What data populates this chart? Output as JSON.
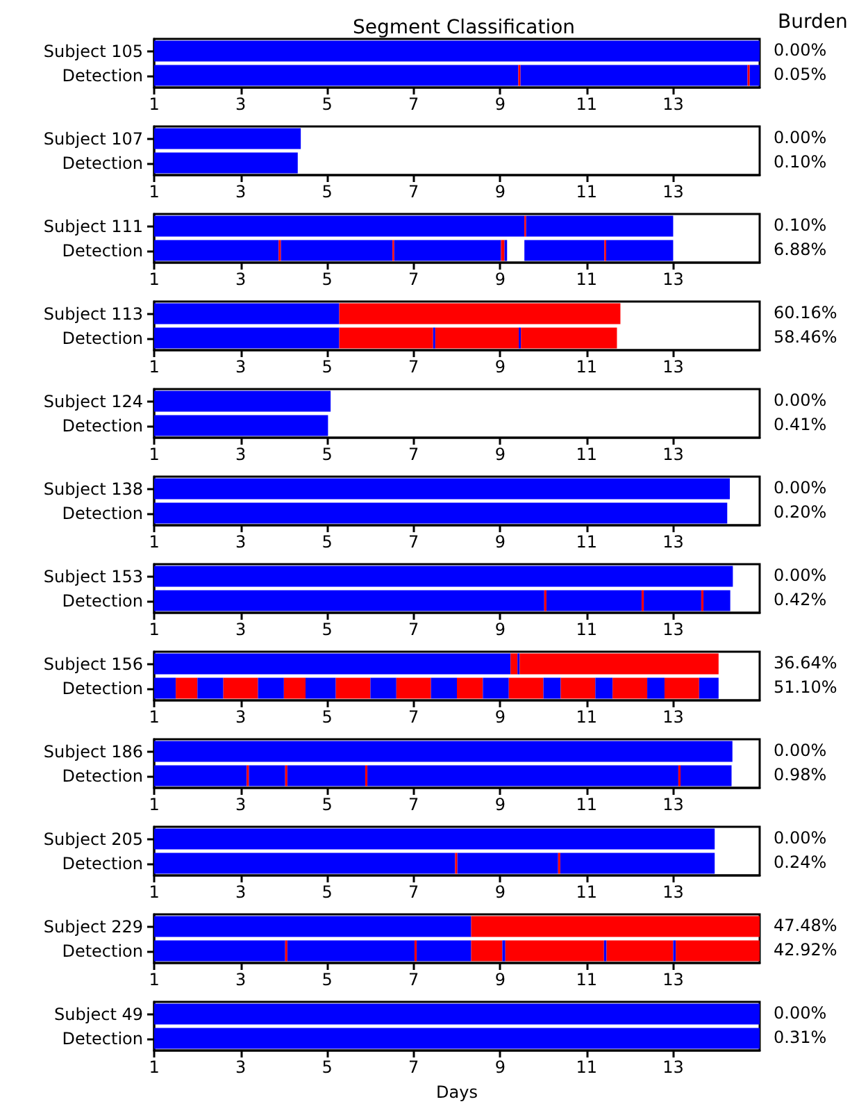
{
  "chart_data": [
    {
      "type": "bar",
      "orientation": "horizontal",
      "title": "Segment Classification",
      "y2label": "Burden",
      "categories": [
        "Subject 105",
        "Detection"
      ],
      "xlim": [
        1,
        15
      ],
      "xticks": [
        1,
        3,
        5,
        7,
        9,
        11,
        13
      ],
      "annotations": [
        "0.00%",
        "0.05%"
      ],
      "series": [
        {
          "color": "#0000ff",
          "values": [
            14,
            8.42
          ],
          "base": [
            1,
            1
          ]
        },
        {
          "color": "#ff0000",
          "values": [
            null,
            0.05
          ],
          "base": [
            null,
            9.42
          ]
        },
        {
          "color": "#0000ff",
          "values": [
            null,
            5.25
          ],
          "base": [
            null,
            9.47
          ]
        },
        {
          "color": "#ff0000",
          "values": [
            null,
            0.05
          ],
          "base": [
            null,
            14.72
          ]
        },
        {
          "color": "#0000ff",
          "values": [
            null,
            0.23
          ],
          "base": [
            null,
            14.77
          ]
        }
      ]
    },
    {
      "type": "bar",
      "orientation": "horizontal",
      "categories": [
        "Subject 107",
        "Detection"
      ],
      "xlim": [
        1,
        15
      ],
      "xticks": [
        1,
        3,
        5,
        7,
        9,
        11,
        13
      ],
      "annotations": [
        "0.00%",
        "0.10%"
      ],
      "series": [
        {
          "color": "#0000ff",
          "values": [
            3.39,
            3.32
          ],
          "base": [
            1,
            1
          ]
        }
      ]
    },
    {
      "type": "bar",
      "orientation": "horizontal",
      "categories": [
        "Subject 111",
        "Detection"
      ],
      "xlim": [
        1,
        15
      ],
      "xticks": [
        1,
        3,
        5,
        7,
        9,
        11,
        13
      ],
      "annotations": [
        "0.10%",
        "6.88%"
      ],
      "series": [
        {
          "color": "#0000ff",
          "values": [
            8.56,
            2.88
          ],
          "base": [
            1,
            1
          ]
        },
        {
          "color": "#ff0000",
          "values": [
            0.04,
            0.05
          ],
          "base": [
            9.56,
            3.88
          ]
        },
        {
          "color": "#0000ff",
          "values": [
            3.4,
            2.58
          ],
          "base": [
            9.6,
            3.93
          ]
        },
        {
          "color": "#ff0000",
          "values": [
            null,
            0.04
          ],
          "base": [
            null,
            6.51
          ]
        },
        {
          "color": "#0000ff",
          "values": [
            null,
            2.47
          ],
          "base": [
            null,
            6.55
          ]
        },
        {
          "color": "#ff0000",
          "values": [
            null,
            0.08
          ],
          "base": [
            null,
            9.02
          ]
        },
        {
          "color": "#0000ff",
          "values": [
            null,
            0.06
          ],
          "base": [
            null,
            9.1
          ]
        },
        {
          "color": "#0000ff",
          "values": [
            null,
            1.85
          ],
          "base": [
            null,
            9.56
          ]
        },
        {
          "color": "#ff0000",
          "values": [
            null,
            0.04
          ],
          "base": [
            null,
            11.41
          ]
        },
        {
          "color": "#0000ff",
          "values": [
            null,
            1.55
          ],
          "base": [
            null,
            11.45
          ]
        }
      ]
    },
    {
      "type": "bar",
      "orientation": "horizontal",
      "categories": [
        "Subject 113",
        "Detection"
      ],
      "xlim": [
        1,
        15
      ],
      "xticks": [
        1,
        3,
        5,
        7,
        9,
        11,
        13
      ],
      "annotations": [
        "60.16%",
        "58.46%"
      ],
      "series": [
        {
          "color": "#0000ff",
          "values": [
            4.28,
            4.28
          ],
          "base": [
            1,
            1
          ]
        },
        {
          "color": "#ff0000",
          "values": [
            6.5,
            2.17
          ],
          "base": [
            5.28,
            5.28
          ]
        },
        {
          "color": "#0000ff",
          "values": [
            null,
            0.05
          ],
          "base": [
            null,
            7.45
          ]
        },
        {
          "color": "#ff0000",
          "values": [
            null,
            1.93
          ],
          "base": [
            null,
            7.5
          ]
        },
        {
          "color": "#0000ff",
          "values": [
            null,
            0.05
          ],
          "base": [
            null,
            9.43
          ]
        },
        {
          "color": "#ff0000",
          "values": [
            null,
            2.22
          ],
          "base": [
            null,
            9.48
          ]
        }
      ]
    },
    {
      "type": "bar",
      "orientation": "horizontal",
      "categories": [
        "Subject 124",
        "Detection"
      ],
      "xlim": [
        1,
        15
      ],
      "xticks": [
        1,
        3,
        5,
        7,
        9,
        11,
        13
      ],
      "annotations": [
        "0.00%",
        "0.41%"
      ],
      "series": [
        {
          "color": "#0000ff",
          "values": [
            4.08,
            4.02
          ],
          "base": [
            1,
            1
          ]
        }
      ]
    },
    {
      "type": "bar",
      "orientation": "horizontal",
      "categories": [
        "Subject 138",
        "Detection"
      ],
      "xlim": [
        1,
        15
      ],
      "xticks": [
        1,
        3,
        5,
        7,
        9,
        11,
        13
      ],
      "annotations": [
        "0.00%",
        "0.20%"
      ],
      "series": [
        {
          "color": "#0000ff",
          "values": [
            13.31,
            13.25
          ],
          "base": [
            1,
            1
          ]
        }
      ]
    },
    {
      "type": "bar",
      "orientation": "horizontal",
      "categories": [
        "Subject 153",
        "Detection"
      ],
      "xlim": [
        1,
        15
      ],
      "xticks": [
        1,
        3,
        5,
        7,
        9,
        11,
        13
      ],
      "annotations": [
        "0.00%",
        "0.42%"
      ],
      "series": [
        {
          "color": "#0000ff",
          "values": [
            13.38,
            9.02
          ],
          "base": [
            1,
            1
          ]
        },
        {
          "color": "#ff0000",
          "values": [
            null,
            0.05
          ],
          "base": [
            null,
            10.02
          ]
        },
        {
          "color": "#0000ff",
          "values": [
            null,
            2.2
          ],
          "base": [
            null,
            10.07
          ]
        },
        {
          "color": "#ff0000",
          "values": [
            null,
            0.05
          ],
          "base": [
            null,
            12.27
          ]
        },
        {
          "color": "#0000ff",
          "values": [
            null,
            1.33
          ],
          "base": [
            null,
            12.32
          ]
        },
        {
          "color": "#ff0000",
          "values": [
            null,
            0.05
          ],
          "base": [
            null,
            13.65
          ]
        },
        {
          "color": "#0000ff",
          "values": [
            null,
            0.62
          ],
          "base": [
            null,
            13.7
          ]
        }
      ]
    },
    {
      "type": "bar",
      "orientation": "horizontal",
      "categories": [
        "Subject 156",
        "Detection"
      ],
      "xlim": [
        1,
        15
      ],
      "xticks": [
        1,
        3,
        5,
        7,
        9,
        11,
        13
      ],
      "annotations": [
        "36.64%",
        "51.10%"
      ],
      "series": [
        {
          "color": "#0000ff",
          "values": [
            8.24,
            0.5
          ],
          "base": [
            1,
            1
          ]
        },
        {
          "color": "#ff0000",
          "values": [
            0.16,
            0.5
          ],
          "base": [
            9.24,
            1.5
          ]
        },
        {
          "color": "#0000ff",
          "values": [
            0.05,
            0.6
          ],
          "base": [
            9.4,
            2
          ]
        },
        {
          "color": "#ff0000",
          "values": [
            4.6,
            0.8
          ],
          "base": [
            9.45,
            2.6
          ]
        },
        {
          "color": "#0000ff",
          "values": [
            null,
            0.6
          ],
          "base": [
            null,
            3.4
          ]
        },
        {
          "color": "#ff0000",
          "values": [
            null,
            0.5
          ],
          "base": [
            null,
            4
          ]
        },
        {
          "color": "#0000ff",
          "values": [
            null,
            0.7
          ],
          "base": [
            null,
            4.5
          ]
        },
        {
          "color": "#ff0000",
          "values": [
            null,
            0.8
          ],
          "base": [
            null,
            5.2
          ]
        },
        {
          "color": "#0000ff",
          "values": [
            null,
            0.6
          ],
          "base": [
            null,
            6
          ]
        },
        {
          "color": "#ff0000",
          "values": [
            null,
            0.8
          ],
          "base": [
            null,
            6.6
          ]
        },
        {
          "color": "#0000ff",
          "values": [
            null,
            0.6
          ],
          "base": [
            null,
            7.4
          ]
        },
        {
          "color": "#ff0000",
          "values": [
            null,
            0.6
          ],
          "base": [
            null,
            8
          ]
        },
        {
          "color": "#0000ff",
          "values": [
            null,
            0.6
          ],
          "base": [
            null,
            8.6
          ]
        },
        {
          "color": "#ff0000",
          "values": [
            null,
            0.8
          ],
          "base": [
            null,
            9.2
          ]
        },
        {
          "color": "#0000ff",
          "values": [
            null,
            0.4
          ],
          "base": [
            null,
            10
          ]
        },
        {
          "color": "#ff0000",
          "values": [
            null,
            0.8
          ],
          "base": [
            null,
            10.4
          ]
        },
        {
          "color": "#0000ff",
          "values": [
            null,
            0.4
          ],
          "base": [
            null,
            11.2
          ]
        },
        {
          "color": "#ff0000",
          "values": [
            null,
            0.8
          ],
          "base": [
            null,
            11.6
          ]
        },
        {
          "color": "#0000ff",
          "values": [
            null,
            0.4
          ],
          "base": [
            null,
            12.4
          ]
        },
        {
          "color": "#ff0000",
          "values": [
            null,
            0.8
          ],
          "base": [
            null,
            12.8
          ]
        },
        {
          "color": "#0000ff",
          "values": [
            null,
            0.45
          ],
          "base": [
            null,
            13.6
          ]
        }
      ]
    },
    {
      "type": "bar",
      "orientation": "horizontal",
      "categories": [
        "Subject 186",
        "Detection"
      ],
      "xlim": [
        1,
        15
      ],
      "xticks": [
        1,
        3,
        5,
        7,
        9,
        11,
        13
      ],
      "annotations": [
        "0.00%",
        "0.98%"
      ],
      "series": [
        {
          "color": "#0000ff",
          "values": [
            13.37,
            2.14
          ],
          "base": [
            1,
            1
          ]
        },
        {
          "color": "#ff0000",
          "values": [
            null,
            0.05
          ],
          "base": [
            null,
            3.14
          ]
        },
        {
          "color": "#0000ff",
          "values": [
            null,
            0.84
          ],
          "base": [
            null,
            3.19
          ]
        },
        {
          "color": "#ff0000",
          "values": [
            null,
            0.05
          ],
          "base": [
            null,
            4.03
          ]
        },
        {
          "color": "#0000ff",
          "values": [
            null,
            1.8
          ],
          "base": [
            null,
            4.08
          ]
        },
        {
          "color": "#ff0000",
          "values": [
            null,
            0.05
          ],
          "base": [
            null,
            5.88
          ]
        },
        {
          "color": "#0000ff",
          "values": [
            null,
            7.19
          ],
          "base": [
            null,
            5.93
          ]
        },
        {
          "color": "#ff0000",
          "values": [
            null,
            0.05
          ],
          "base": [
            null,
            13.12
          ]
        },
        {
          "color": "#0000ff",
          "values": [
            null,
            1.18
          ],
          "base": [
            null,
            13.17
          ]
        }
      ]
    },
    {
      "type": "bar",
      "orientation": "horizontal",
      "categories": [
        "Subject 205",
        "Detection"
      ],
      "xlim": [
        1,
        15
      ],
      "xticks": [
        1,
        3,
        5,
        7,
        9,
        11,
        13
      ],
      "annotations": [
        "0.00%",
        "0.24%"
      ],
      "series": [
        {
          "color": "#0000ff",
          "values": [
            12.96,
            6.96
          ],
          "base": [
            1,
            1
          ]
        },
        {
          "color": "#ff0000",
          "values": [
            null,
            0.05
          ],
          "base": [
            null,
            7.96
          ]
        },
        {
          "color": "#0000ff",
          "values": [
            null,
            2.33
          ],
          "base": [
            null,
            8.01
          ]
        },
        {
          "color": "#ff0000",
          "values": [
            null,
            0.05
          ],
          "base": [
            null,
            10.34
          ]
        },
        {
          "color": "#0000ff",
          "values": [
            null,
            3.57
          ],
          "base": [
            null,
            10.39
          ]
        }
      ]
    },
    {
      "type": "bar",
      "orientation": "horizontal",
      "categories": [
        "Subject 229",
        "Detection"
      ],
      "xlim": [
        1,
        15
      ],
      "xticks": [
        1,
        3,
        5,
        7,
        9,
        11,
        13
      ],
      "annotations": [
        "47.48%",
        "42.92%"
      ],
      "series": [
        {
          "color": "#0000ff",
          "values": [
            7.33,
            3.03
          ],
          "base": [
            1,
            1
          ]
        },
        {
          "color": "#ff0000",
          "values": [
            6.67,
            0.05
          ],
          "base": [
            8.33,
            4.03
          ]
        },
        {
          "color": "#0000ff",
          "values": [
            null,
            2.94
          ],
          "base": [
            null,
            4.08
          ]
        },
        {
          "color": "#ff0000",
          "values": [
            null,
            0.05
          ],
          "base": [
            null,
            7.02
          ]
        },
        {
          "color": "#0000ff",
          "values": [
            null,
            1.26
          ],
          "base": [
            null,
            7.07
          ]
        },
        {
          "color": "#ff0000",
          "values": [
            null,
            0.72
          ],
          "base": [
            null,
            8.33
          ]
        },
        {
          "color": "#0000ff",
          "values": [
            null,
            0.07
          ],
          "base": [
            null,
            9.05
          ]
        },
        {
          "color": "#ff0000",
          "values": [
            null,
            2.28
          ],
          "base": [
            null,
            9.12
          ]
        },
        {
          "color": "#0000ff",
          "values": [
            null,
            0.06
          ],
          "base": [
            null,
            11.4
          ]
        },
        {
          "color": "#ff0000",
          "values": [
            null,
            1.54
          ],
          "base": [
            null,
            11.46
          ]
        },
        {
          "color": "#0000ff",
          "values": [
            null,
            0.06
          ],
          "base": [
            null,
            13
          ]
        },
        {
          "color": "#ff0000",
          "values": [
            null,
            1.94
          ],
          "base": [
            null,
            13.06
          ]
        }
      ]
    },
    {
      "type": "bar",
      "orientation": "horizontal",
      "categories": [
        "Subject 49",
        "Detection"
      ],
      "xlim": [
        1,
        15
      ],
      "xticks": [
        1,
        3,
        5,
        7,
        9,
        11,
        13
      ],
      "xlabel": "Days",
      "annotations": [
        "0.00%",
        "0.31%"
      ],
      "series": [
        {
          "color": "#0000ff",
          "values": [
            14,
            14
          ],
          "base": [
            1,
            1
          ]
        }
      ]
    }
  ]
}
